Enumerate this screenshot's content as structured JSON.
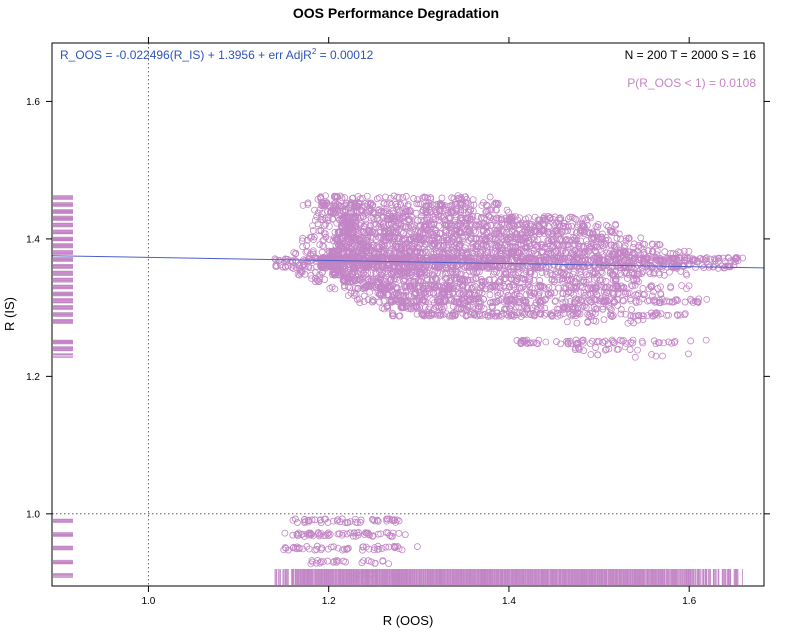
{
  "chart_data": {
    "type": "scatter",
    "title": "OOS Performance Degradation",
    "xlabel": "R (OOS)",
    "ylabel": "R (IS)",
    "xlim": [
      0.893,
      1.683
    ],
    "ylim": [
      0.895,
      1.685
    ],
    "x_ticks": [
      1.0,
      1.2,
      1.4,
      1.6
    ],
    "x_tick_labels": [
      "1.0",
      "1.2",
      "1.4",
      "1.6"
    ],
    "y_ticks": [
      1.0,
      1.2,
      1.4,
      1.6
    ],
    "y_tick_labels": [
      "1.0",
      "1.2",
      "1.4",
      "1.6"
    ],
    "grid": false,
    "reference_lines": {
      "x": 1.0,
      "y": 1.0
    },
    "regression": {
      "slope": -0.022496,
      "intercept": 1.3956
    },
    "annotations": {
      "regression_prefix": "R_OOS = -0.022496(R_IS) + 1.3956 + err  AdjR",
      "regression_sup": "2",
      "regression_suffix": " = 0.00012",
      "counts": "N = 200  T = 2000  S = 16",
      "probability": "P(R_OOS < 1) = 0.0108"
    },
    "colors": {
      "points": "#c285c5",
      "regression_line": "#4d5fc9",
      "regression_text": "#2f54b8",
      "probability_text": "#c285c5",
      "axis": "#000000"
    },
    "rug": {
      "y_side": "left",
      "x_side": "bottom"
    },
    "clusters": [
      {
        "y": 1.46,
        "xmin": 1.17,
        "xmax": 1.38,
        "n": 50
      },
      {
        "y": 1.45,
        "xmin": 1.17,
        "xmax": 1.39,
        "n": 120
      },
      {
        "y": 1.44,
        "xmin": 1.18,
        "xmax": 1.4,
        "n": 120
      },
      {
        "y": 1.43,
        "xmin": 1.18,
        "xmax": 1.5,
        "n": 180
      },
      {
        "y": 1.42,
        "xmin": 1.18,
        "xmax": 1.52,
        "n": 200
      },
      {
        "y": 1.41,
        "xmin": 1.18,
        "xmax": 1.53,
        "n": 220
      },
      {
        "y": 1.4,
        "xmin": 1.17,
        "xmax": 1.55,
        "n": 240
      },
      {
        "y": 1.39,
        "xmin": 1.17,
        "xmax": 1.57,
        "n": 240
      },
      {
        "y": 1.38,
        "xmin": 1.16,
        "xmax": 1.6,
        "n": 300
      },
      {
        "y": 1.37,
        "xmin": 1.14,
        "xmax": 1.66,
        "n": 650
      },
      {
        "y": 1.36,
        "xmin": 1.14,
        "xmax": 1.65,
        "n": 450
      },
      {
        "y": 1.35,
        "xmin": 1.16,
        "xmax": 1.6,
        "n": 220
      },
      {
        "y": 1.34,
        "xmin": 1.18,
        "xmax": 1.55,
        "n": 180
      },
      {
        "y": 1.33,
        "xmin": 1.2,
        "xmax": 1.6,
        "n": 240
      },
      {
        "y": 1.32,
        "xmin": 1.22,
        "xmax": 1.58,
        "n": 160
      },
      {
        "y": 1.31,
        "xmin": 1.23,
        "xmax": 1.62,
        "n": 220
      },
      {
        "y": 1.3,
        "xmin": 1.25,
        "xmax": 1.55,
        "n": 120
      },
      {
        "y": 1.29,
        "xmin": 1.27,
        "xmax": 1.6,
        "n": 160
      },
      {
        "y": 1.28,
        "xmin": 1.45,
        "xmax": 1.55,
        "n": 12
      },
      {
        "y": 1.25,
        "xmin": 1.39,
        "xmax": 1.62,
        "n": 70
      },
      {
        "y": 1.24,
        "xmin": 1.46,
        "xmax": 1.55,
        "n": 15
      },
      {
        "y": 1.23,
        "xmin": 1.48,
        "xmax": 1.62,
        "n": 8
      },
      {
        "y": 0.99,
        "xmin": 1.16,
        "xmax": 1.29,
        "n": 50
      },
      {
        "y": 0.97,
        "xmin": 1.15,
        "xmax": 1.29,
        "n": 60
      },
      {
        "y": 0.95,
        "xmin": 1.15,
        "xmax": 1.3,
        "n": 50
      },
      {
        "y": 0.93,
        "xmin": 1.17,
        "xmax": 1.27,
        "n": 25
      },
      {
        "y": 0.91,
        "xmin": 1.22,
        "xmax": 1.3,
        "n": 10
      }
    ]
  }
}
